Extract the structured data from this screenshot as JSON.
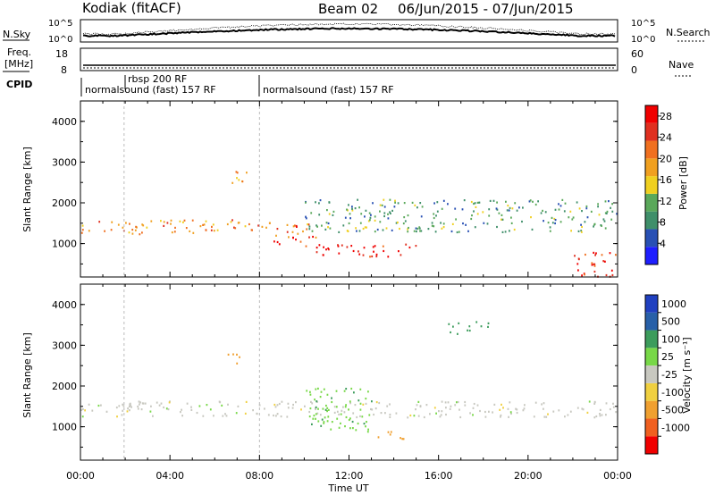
{
  "header": {
    "station": "Kodiak (fitACF)",
    "beam": "Beam 02",
    "dates": "06/Jun/2015 - 07/Jun/2015"
  },
  "strips": {
    "nsky_label": "N.Sky",
    "nsearch_label": "N.Search",
    "noise_ticks_left": [
      "10^5",
      "10^0"
    ],
    "noise_ticks_right": [
      "10^5",
      "10^0"
    ],
    "freq_label_1": "Freq.",
    "freq_label_2": "[MHz]",
    "freq_ticks": [
      "18",
      "8"
    ],
    "nave_label": "Nave",
    "nave_ticks": [
      "60",
      "0"
    ],
    "cpid_label": "CPID",
    "cpid_text_1": "normalsound (fast) 157 RF",
    "cpid_text_2": "rbsp 200 RF",
    "cpid_text_3": "normalsound (fast) 157 RF"
  },
  "colors": {
    "power": [
      "#1e1eff",
      "#2850b4",
      "#3f8f6a",
      "#5aa85a",
      "#f0d020",
      "#f0a020",
      "#f07020",
      "#e03020",
      "#f00000"
    ],
    "velocity": [
      "#f00000",
      "#f06020",
      "#f0a030",
      "#f0d040",
      "#c8c8c0",
      "#78d848",
      "#3c9c5c",
      "#2860a8",
      "#2040c0"
    ]
  },
  "chart_data": [
    {
      "type": "heatmap",
      "quantity": "Power",
      "x": {
        "label": "Time UT",
        "ticks": [
          "00:00",
          "04:00",
          "08:00",
          "12:00",
          "16:00",
          "20:00",
          "00:00"
        ],
        "range_hours": [
          0,
          24
        ]
      },
      "y": {
        "label": "Slant Range [km]",
        "ticks": [
          1000,
          2000,
          3000,
          4000
        ],
        "range": [
          180,
          4500
        ]
      },
      "colorbar": {
        "label": "Power [dB]",
        "ticks": [
          4,
          8,
          12,
          16,
          20,
          24,
          28
        ],
        "range": [
          0,
          30
        ]
      },
      "bands": [
        {
          "t0": 0.0,
          "t1": 8.5,
          "r0": 1250,
          "r1": 1600,
          "level": 20
        },
        {
          "t0": 8.5,
          "t1": 10.5,
          "r0": 950,
          "r1": 1500,
          "level": 24
        },
        {
          "t0": 10.5,
          "t1": 15.0,
          "r0": 700,
          "r1": 1000,
          "level": 28
        },
        {
          "t0": 10.0,
          "t1": 24.0,
          "r0": 1300,
          "r1": 2100,
          "level": 10
        },
        {
          "t0": 22.0,
          "t1": 24.0,
          "r0": 200,
          "r1": 800,
          "level": 26
        },
        {
          "t0": 6.5,
          "t1": 7.5,
          "r0": 2500,
          "r1": 2900,
          "level": 18
        }
      ]
    },
    {
      "type": "heatmap",
      "quantity": "Velocity",
      "x": {
        "label": "Time UT",
        "ticks": [
          "00:00",
          "04:00",
          "08:00",
          "12:00",
          "16:00",
          "20:00",
          "00:00"
        ],
        "range_hours": [
          0,
          24
        ]
      },
      "y": {
        "label": "Slant Range [km]",
        "ticks": [
          1000,
          2000,
          3000,
          4000
        ],
        "range": [
          180,
          4500
        ]
      },
      "colorbar": {
        "label": "Velocity [m s⁻¹]",
        "ticks": [
          1000,
          500,
          100,
          25,
          -25,
          -100,
          -500,
          -1000
        ]
      },
      "bands": [
        {
          "t0": 0.0,
          "t1": 24.0,
          "r0": 1250,
          "r1": 1650,
          "level": 0
        },
        {
          "t0": 10.0,
          "t1": 13.0,
          "r0": 900,
          "r1": 2000,
          "level": 80
        },
        {
          "t0": 13.0,
          "t1": 14.5,
          "r0": 700,
          "r1": 900,
          "level": -150
        },
        {
          "t0": 6.5,
          "t1": 7.3,
          "r0": 2550,
          "r1": 2800,
          "level": -200
        },
        {
          "t0": 16.3,
          "t1": 18.2,
          "r0": 3300,
          "r1": 3600,
          "level": 150
        }
      ]
    }
  ]
}
